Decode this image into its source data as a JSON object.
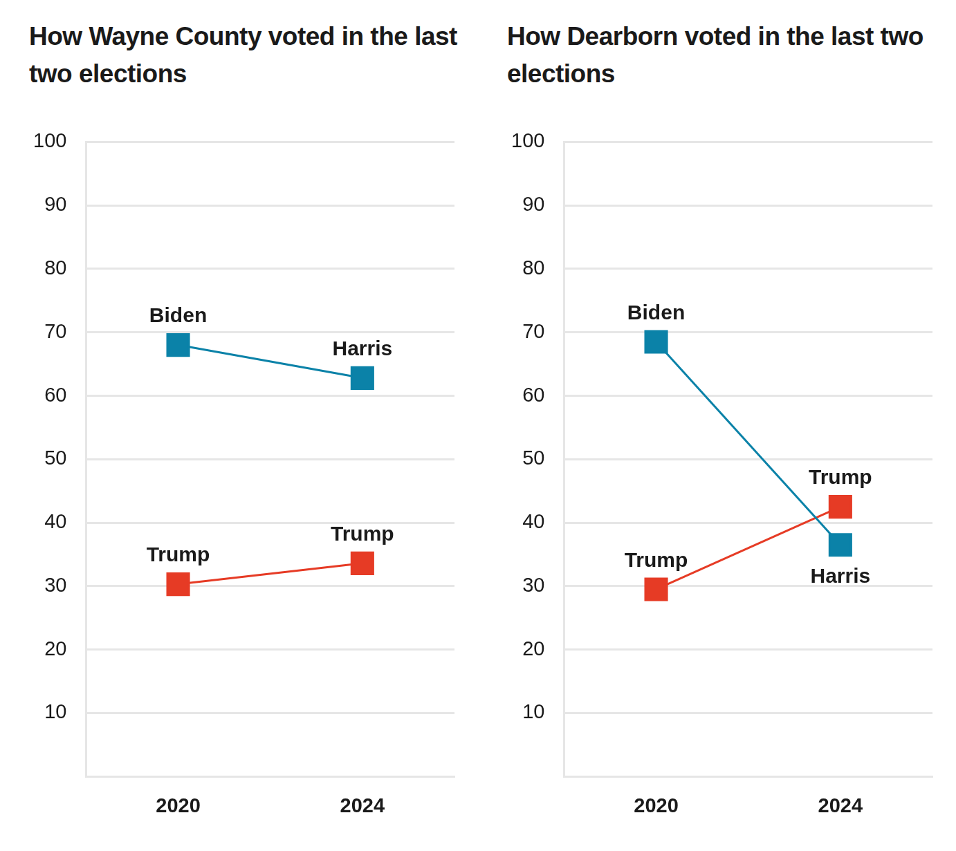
{
  "chart_data": [
    {
      "type": "line",
      "title": "How Wayne County voted in the last two elections",
      "categories": [
        "2020",
        "2024"
      ],
      "series": [
        {
          "labels": [
            "Biden",
            "Harris"
          ],
          "color": "#0b82a8",
          "values": [
            68,
            62.8
          ],
          "marker": "square",
          "line_style": "solid"
        },
        {
          "labels": [
            "Trump",
            "Trump"
          ],
          "color": "#e63b25",
          "values": [
            30.3,
            33.6
          ],
          "marker": "square",
          "line_style": "solid"
        }
      ],
      "ylim": [
        0,
        100
      ],
      "yticks": [
        10,
        20,
        30,
        40,
        50,
        60,
        70,
        80,
        90,
        100
      ],
      "grid": true
    },
    {
      "type": "line",
      "title": "How Dearborn voted in the last two elections",
      "categories": [
        "2020",
        "2024"
      ],
      "series": [
        {
          "labels": [
            "Biden",
            "Harris"
          ],
          "color": "#0b82a8",
          "values": [
            68.5,
            36.5
          ],
          "marker": "square",
          "line_style": "solid"
        },
        {
          "labels": [
            "Trump",
            "Trump"
          ],
          "color": "#e63b25",
          "values": [
            29.5,
            42.5
          ],
          "marker": "square",
          "line_style": "solid"
        }
      ],
      "ylim": [
        0,
        100
      ],
      "yticks": [
        10,
        20,
        30,
        40,
        50,
        60,
        70,
        80,
        90,
        100
      ],
      "grid": true
    }
  ]
}
